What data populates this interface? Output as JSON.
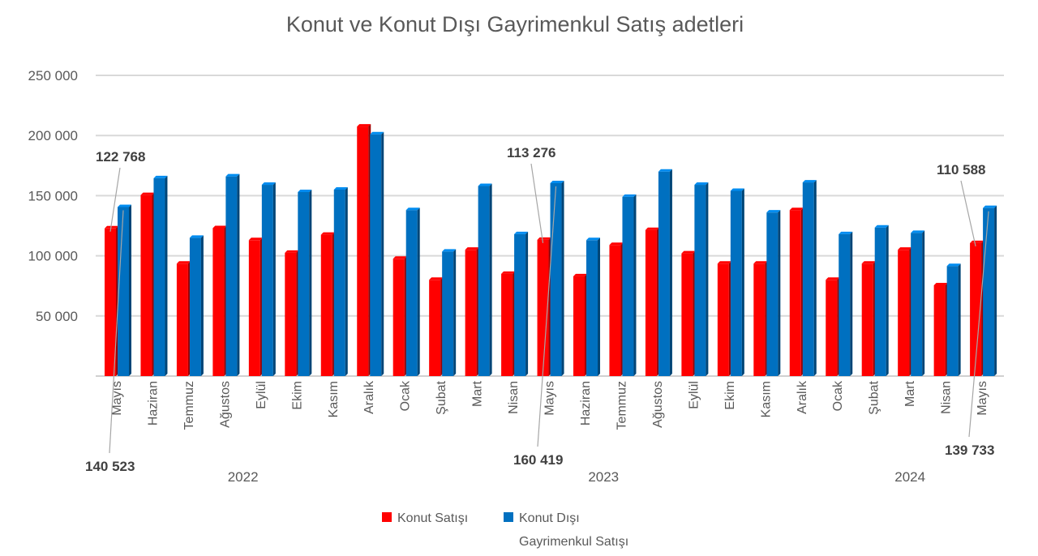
{
  "chart_data": {
    "type": "bar",
    "title": "Konut ve Konut Dışı Gayrimenkul Satış adetleri",
    "xlabel": "",
    "ylabel": "",
    "ylim": [
      0,
      250000
    ],
    "yticks": [
      {
        "value": 50000,
        "label": "50 000"
      },
      {
        "value": 100000,
        "label": "100 000"
      },
      {
        "value": 150000,
        "label": "150 000"
      },
      {
        "value": 200000,
        "label": "200 000"
      },
      {
        "value": 250000,
        "label": "250 000"
      }
    ],
    "grid": true,
    "legend_position": "bottom",
    "categories": [
      "Mayıs",
      "Haziran",
      "Temmuz",
      "Ağustos",
      "Eylül",
      "Ekim",
      "Kasım",
      "Aralık",
      "Ocak",
      "Şubat",
      "Mart",
      "Nisan",
      "Mayıs",
      "Haziran",
      "Temmuz",
      "Ağustos",
      "Eylül",
      "Ekim",
      "Kasım",
      "Aralık",
      "Ocak",
      "Şubat",
      "Mart",
      "Nisan",
      "Mayıs"
    ],
    "year_groups": [
      {
        "label": "2022",
        "start": 0,
        "end": 7
      },
      {
        "label": "2023",
        "start": 8,
        "end": 19
      },
      {
        "label": "2024",
        "start": 20,
        "end": 24
      }
    ],
    "series": [
      {
        "name": "Konut Satışı",
        "color": "#ff0000",
        "values": [
          122768,
          150500,
          93500,
          123000,
          113000,
          102500,
          117500,
          207500,
          97500,
          80000,
          105000,
          85000,
          113276,
          83000,
          109000,
          121500,
          102000,
          93500,
          93500,
          138000,
          80000,
          93500,
          105000,
          75500,
          110588
        ]
      },
      {
        "name": "Konut Dışı Gayrimenkul Satışı",
        "color": "#0070c0",
        "values": [
          140523,
          164500,
          115000,
          166000,
          159000,
          153000,
          155000,
          201000,
          138000,
          103500,
          158000,
          118000,
          160419,
          113000,
          149000,
          170000,
          159000,
          154000,
          136000,
          161000,
          118000,
          123500,
          119000,
          91500,
          139733
        ]
      }
    ],
    "annotations": [
      {
        "text": "122 768",
        "category_index": 0,
        "series_index": 0
      },
      {
        "text": "140 523",
        "category_index": 0,
        "series_index": 1
      },
      {
        "text": "113 276",
        "category_index": 12,
        "series_index": 0
      },
      {
        "text": "160 419",
        "category_index": 12,
        "series_index": 1
      },
      {
        "text": "110 588",
        "category_index": 24,
        "series_index": 0
      },
      {
        "text": "139 733",
        "category_index": 24,
        "series_index": 1
      }
    ]
  }
}
